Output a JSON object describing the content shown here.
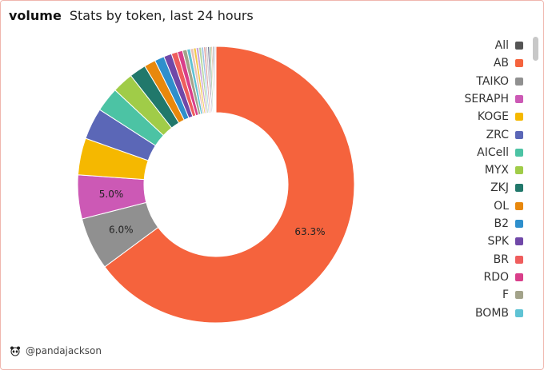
{
  "header": {
    "title": "volume",
    "subtitle": "Stats by token, last 24 hours"
  },
  "footer": {
    "handle": "@pandajackson",
    "icon": "panda-icon"
  },
  "chart_data": {
    "type": "pie",
    "donut": true,
    "legend_position": "right",
    "slices": [
      {
        "label": "AB",
        "value": 63.3,
        "color": "#f5633d",
        "show_label": true,
        "text": "63.3%"
      },
      {
        "label": "TAIKO",
        "value": 6.0,
        "color": "#909090",
        "show_label": true,
        "text": "6.0%"
      },
      {
        "label": "SERAPH",
        "value": 5.0,
        "color": "#cc59b5",
        "show_label": true,
        "text": "5.0%"
      },
      {
        "label": "KOGE",
        "value": 4.2,
        "color": "#f5b800",
        "show_label": false
      },
      {
        "label": "ZRC",
        "value": 3.6,
        "color": "#5b67b7",
        "show_label": false
      },
      {
        "label": "AICell",
        "value": 2.8,
        "color": "#4cc3a4",
        "show_label": false
      },
      {
        "label": "MYX",
        "value": 2.4,
        "color": "#a0cc48",
        "show_label": false
      },
      {
        "label": "ZKJ",
        "value": 1.9,
        "color": "#21786b",
        "show_label": false
      },
      {
        "label": "OL",
        "value": 1.3,
        "color": "#e8880c",
        "show_label": false
      },
      {
        "label": "B2",
        "value": 1.1,
        "color": "#2e8fcc",
        "show_label": false
      },
      {
        "label": "SPK",
        "value": 0.9,
        "color": "#7048a8",
        "show_label": false
      },
      {
        "label": "BR",
        "value": 0.7,
        "color": "#ef5d5d",
        "show_label": false
      },
      {
        "label": "RDO",
        "value": 0.6,
        "color": "#d93f8a",
        "show_label": false
      },
      {
        "label": "F",
        "value": 0.5,
        "color": "#a3a38a",
        "show_label": false
      },
      {
        "label": "BOMB",
        "value": 0.4,
        "color": "#5fc3d4",
        "show_label": false
      },
      {
        "label": "",
        "value": 0.35,
        "color": "#e8c2b8",
        "show_label": false
      },
      {
        "label": "",
        "value": 0.3,
        "color": "#f2c94c",
        "show_label": false
      },
      {
        "label": "",
        "value": 0.3,
        "color": "#c9a3d9",
        "show_label": false
      },
      {
        "label": "",
        "value": 0.3,
        "color": "#b8d8a0",
        "show_label": false
      },
      {
        "label": "",
        "value": 0.25,
        "color": "#9cc2e6",
        "show_label": false
      },
      {
        "label": "",
        "value": 0.25,
        "color": "#e0a3a3",
        "show_label": false
      },
      {
        "label": "",
        "value": 0.2,
        "color": "#c4c4c4",
        "show_label": false
      },
      {
        "label": "",
        "value": 0.2,
        "color": "#6b6b8f",
        "show_label": false
      },
      {
        "label": "",
        "value": 0.2,
        "color": "#8fbc8f",
        "show_label": false
      },
      {
        "label": "",
        "value": 0.15,
        "color": "#d4a373",
        "show_label": false
      },
      {
        "label": "",
        "value": 0.15,
        "color": "#7a7a7a",
        "show_label": false
      },
      {
        "label": "",
        "value": 0.15,
        "color": "#a0a0c8",
        "show_label": false
      },
      {
        "label": "",
        "value": 0.1,
        "color": "#555555",
        "show_label": false
      }
    ],
    "legend": [
      {
        "label": "All",
        "color": "#555555"
      },
      {
        "label": "AB",
        "color": "#f5633d"
      },
      {
        "label": "TAIKO",
        "color": "#909090"
      },
      {
        "label": "SERAPH",
        "color": "#cc59b5"
      },
      {
        "label": "KOGE",
        "color": "#f5b800"
      },
      {
        "label": "ZRC",
        "color": "#5b67b7"
      },
      {
        "label": "AICell",
        "color": "#4cc3a4"
      },
      {
        "label": "MYX",
        "color": "#a0cc48"
      },
      {
        "label": "ZKJ",
        "color": "#21786b"
      },
      {
        "label": "OL",
        "color": "#e8880c"
      },
      {
        "label": "B2",
        "color": "#2e8fcc"
      },
      {
        "label": "SPK",
        "color": "#7048a8"
      },
      {
        "label": "BR",
        "color": "#ef5d5d"
      },
      {
        "label": "RDO",
        "color": "#d93f8a"
      },
      {
        "label": "F",
        "color": "#a3a38a"
      },
      {
        "label": "BOMB",
        "color": "#5fc3d4"
      }
    ]
  }
}
